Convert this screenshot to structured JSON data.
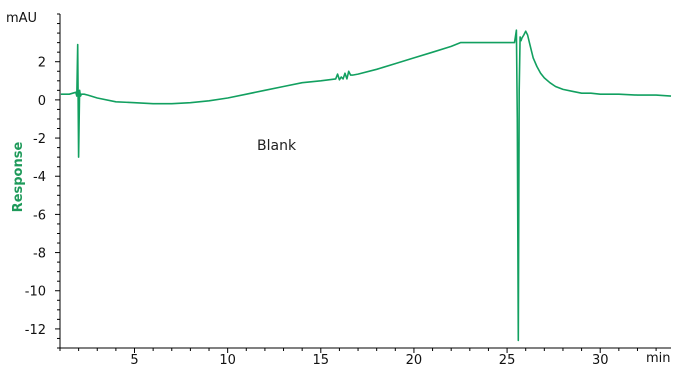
{
  "chart_data": {
    "type": "line",
    "title": "",
    "xlabel": "",
    "ylabel": "Response",
    "x_unit": "min",
    "y_unit": "mAU",
    "xlim": [
      1.0,
      33.8
    ],
    "ylim": [
      -13.0,
      4.5
    ],
    "x_ticks": [
      5,
      10,
      15,
      20,
      25,
      30
    ],
    "y_ticks": [
      2,
      0,
      -2,
      -4,
      -6,
      -8,
      -10,
      -12
    ],
    "grid": false,
    "legend": "none",
    "annotation": "Blank",
    "line_color": "#12a060",
    "ylabel_color": "#1e9a5a",
    "series": [
      {
        "x": [
          1.05,
          1.5,
          1.85,
          1.9,
          1.95,
          2.0,
          2.05,
          2.1,
          2.15,
          2.2,
          2.3,
          2.5,
          3.0,
          4.0,
          5.0,
          6.0,
          7.0,
          8.0,
          9.0,
          10.0,
          11.0,
          12.0,
          13.0,
          14.0,
          15.0,
          15.8,
          15.9,
          16.0,
          16.1,
          16.2,
          16.3,
          16.4,
          16.5,
          16.6,
          16.7,
          17.0,
          18.0,
          19.0,
          20.0,
          21.0,
          22.0,
          22.5,
          23.0,
          24.0,
          25.0,
          25.4,
          25.5,
          25.55,
          25.6,
          25.65,
          25.7,
          25.75,
          25.8,
          25.9,
          26.0,
          26.1,
          26.2,
          26.3,
          26.4,
          26.6,
          26.8,
          27.0,
          27.3,
          27.6,
          28.0,
          28.5,
          29.0,
          29.5,
          30.0,
          31.0,
          32.0,
          33.0,
          33.8
        ],
        "y": [
          0.3,
          0.3,
          0.4,
          0.2,
          2.9,
          -3.0,
          0.5,
          0.2,
          0.3,
          0.3,
          0.3,
          0.25,
          0.1,
          -0.1,
          -0.15,
          -0.2,
          -0.2,
          -0.15,
          -0.05,
          0.1,
          0.3,
          0.5,
          0.7,
          0.9,
          1.0,
          1.1,
          1.35,
          1.05,
          1.2,
          1.1,
          1.4,
          1.1,
          1.5,
          1.3,
          1.3,
          1.35,
          1.6,
          1.9,
          2.2,
          2.5,
          2.8,
          3.0,
          3.0,
          3.0,
          3.0,
          3.0,
          3.65,
          -1.0,
          -12.6,
          0.5,
          3.3,
          3.1,
          3.25,
          3.4,
          3.6,
          3.4,
          3.0,
          2.6,
          2.2,
          1.75,
          1.4,
          1.15,
          0.9,
          0.7,
          0.55,
          0.45,
          0.35,
          0.35,
          0.3,
          0.3,
          0.25,
          0.25,
          0.2
        ]
      }
    ]
  }
}
